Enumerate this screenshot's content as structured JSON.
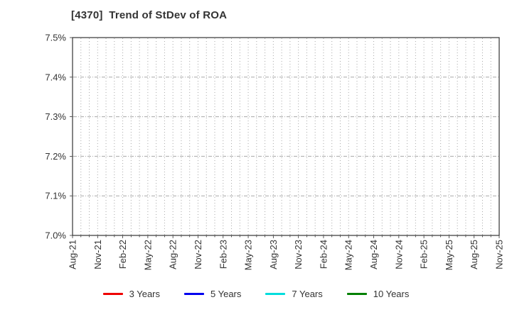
{
  "window": {
    "background": "#ffffff"
  },
  "chart_data": {
    "type": "line",
    "title": "[4370]  Trend of StDev of ROA",
    "xlabel": "",
    "ylabel": "",
    "ylim": [
      7.0,
      7.5
    ],
    "y_tick_labels": [
      "7.0%",
      "7.1%",
      "7.2%",
      "7.3%",
      "7.4%",
      "7.5%"
    ],
    "x_tick_labels": [
      "Aug-21",
      "Nov-21",
      "Feb-22",
      "May-22",
      "Aug-22",
      "Nov-22",
      "Feb-23",
      "May-23",
      "Aug-23",
      "Nov-23",
      "Feb-24",
      "May-24",
      "Aug-24",
      "Nov-24",
      "Feb-25",
      "May-25",
      "Aug-25",
      "Nov-25"
    ],
    "months_between_labeled_ticks": 3,
    "total_month_intervals": 51,
    "grid": true,
    "grid_vertical_style": "dotted-monthly",
    "grid_horizontal_style": "dash-dot",
    "legend_position": "bottom-center",
    "series": [
      {
        "name": "3 Years",
        "color": "#ee0000",
        "values": []
      },
      {
        "name": "5 Years",
        "color": "#0000ee",
        "values": []
      },
      {
        "name": "7 Years",
        "color": "#00dddd",
        "values": []
      },
      {
        "name": "10 Years",
        "color": "#008000",
        "values": []
      }
    ],
    "note": "Plot area is empty: no series data is drawn within the visible 7.0%-7.5% range.",
    "grid_color": "#a8a8a8",
    "axis_color": "#333333",
    "text_color": "#333333"
  }
}
